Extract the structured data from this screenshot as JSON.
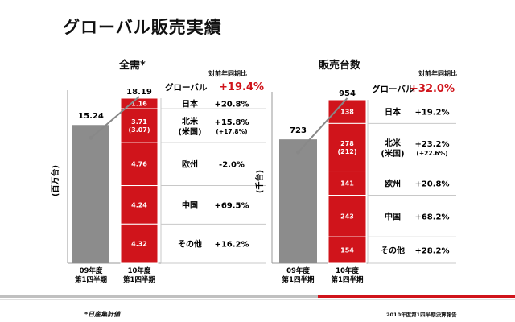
{
  "page": {
    "title": "グローバル販売実績",
    "footnote": "*日産集計値",
    "report": "2010年度第1四半期決算報告"
  },
  "colors": {
    "red": "#d0141b",
    "gray": "#8c8c8c",
    "highlight": "#d0141b"
  },
  "chart_data": [
    {
      "type": "bar",
      "title": "全需*",
      "ylabel": "(百万台)",
      "categories": [
        "09年度\n第1四半期",
        "10年度\n第1四半期"
      ],
      "totals": [
        15.24,
        18.19
      ],
      "segments": [
        {
          "name": "日本",
          "value": 1.16,
          "label": "1.16"
        },
        {
          "name": "北米",
          "value": 3.71,
          "label": "3.71",
          "sublabel": "(3.07)"
        },
        {
          "name": "欧州",
          "value": 4.76,
          "label": "4.76"
        },
        {
          "name": "中国",
          "value": 4.24,
          "label": "4.24"
        },
        {
          "name": "その他",
          "value": 4.32,
          "label": "4.32"
        }
      ],
      "yoy_header": "対前年同期比",
      "global": {
        "label": "グローバル",
        "value": "+19.4%"
      },
      "rows": [
        {
          "label": "日本",
          "value": "+20.8%"
        },
        {
          "label": "北米",
          "label2": "(米国)",
          "value": "+15.8%",
          "sub": "(+17.8%)"
        },
        {
          "label": "欧州",
          "value": "-2.0%"
        },
        {
          "label": "中国",
          "value": "+69.5%"
        },
        {
          "label": "その他",
          "value": "+16.2%"
        }
      ]
    },
    {
      "type": "bar",
      "title": "販売台数",
      "ylabel": "(千台)",
      "categories": [
        "09年度\n第1四半期",
        "10年度\n第1四半期"
      ],
      "totals": [
        723,
        954
      ],
      "segments": [
        {
          "name": "日本",
          "value": 138,
          "label": "138"
        },
        {
          "name": "北米",
          "value": 278,
          "label": "278",
          "sublabel": "(212)"
        },
        {
          "name": "欧州",
          "value": 141,
          "label": "141"
        },
        {
          "name": "中国",
          "value": 243,
          "label": "243"
        },
        {
          "name": "その他",
          "value": 154,
          "label": "154"
        }
      ],
      "yoy_header": "対前年同期比",
      "global": {
        "label": "グローバル",
        "value": "+32.0%"
      },
      "rows": [
        {
          "label": "日本",
          "value": "+19.2%"
        },
        {
          "label": "北米",
          "label2": "(米国)",
          "value": "+23.2%",
          "sub": "(+22.6%)"
        },
        {
          "label": "欧州",
          "value": "+20.8%"
        },
        {
          "label": "中国",
          "value": "+68.2%"
        },
        {
          "label": "その他",
          "value": "+28.2%"
        }
      ]
    }
  ]
}
